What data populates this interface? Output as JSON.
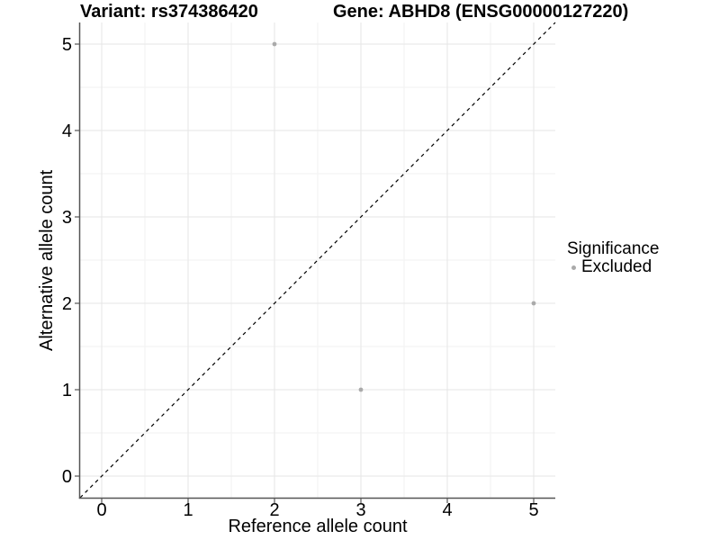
{
  "header": {
    "variant_title": "Variant: rs374386420",
    "gene_title": "Gene: ABHD8 (ENSG00000127220)"
  },
  "axes": {
    "x_label": "Reference allele count",
    "y_label": "Alternative allele count"
  },
  "legend": {
    "title": "Significance",
    "items": [
      {
        "label": "Excluded",
        "color": "#aaaaaa"
      }
    ]
  },
  "colors": {
    "axis_line": "#555555",
    "tick": "#555555",
    "grid_major": "#e5e5e5",
    "grid_minor": "#f2f2f2",
    "point": "#aaaaaa",
    "reference_line": "#000000",
    "text": "#000000"
  },
  "chart_data": {
    "type": "scatter",
    "title": "Variant: rs374386420 | Gene: ABHD8 (ENSG00000127220)",
    "xlabel": "Reference allele count",
    "ylabel": "Alternative allele count",
    "xlim": [
      -0.25,
      5.25
    ],
    "ylim": [
      -0.25,
      5.25
    ],
    "x_ticks": [
      0,
      1,
      2,
      3,
      4,
      5
    ],
    "y_ticks": [
      0,
      1,
      2,
      3,
      4,
      5
    ],
    "minor_grid_step": 0.5,
    "grid": true,
    "legend_position": "right",
    "series": [
      {
        "name": "Excluded",
        "color": "#aaaaaa",
        "marker_radius": 2.4,
        "points": [
          {
            "x": 2,
            "y": 5
          },
          {
            "x": 5,
            "y": 2
          },
          {
            "x": 3,
            "y": 1
          }
        ]
      }
    ],
    "reference_line": {
      "type": "identity",
      "style": "dashed",
      "color": "#000000"
    }
  }
}
